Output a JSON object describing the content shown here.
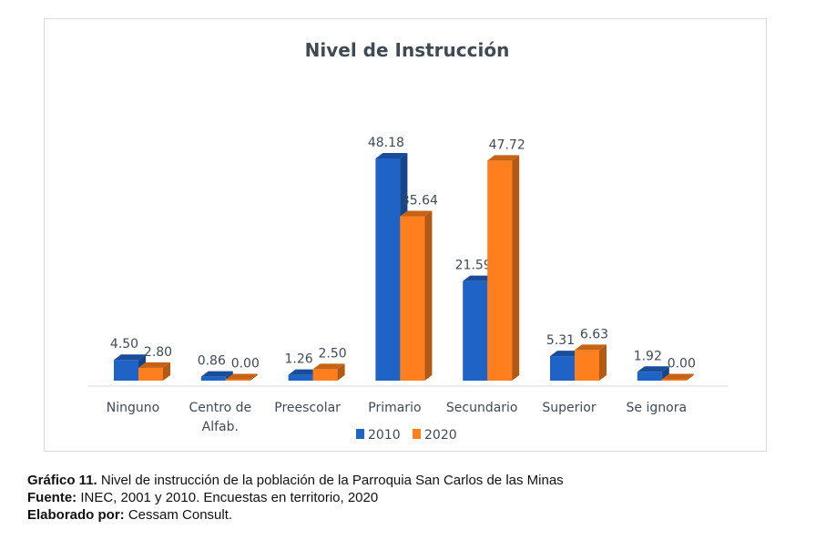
{
  "chart_data": {
    "type": "bar",
    "style": "3d-clustered-column",
    "title": "Nivel de Instrucción",
    "categories": [
      "Ninguno",
      "Centro de Alfab.",
      "Preescolar",
      "Primario",
      "Secundario",
      "Superior",
      "Se ignora"
    ],
    "category_lines": [
      [
        "Ninguno"
      ],
      [
        "Centro de",
        "Alfab."
      ],
      [
        "Preescolar"
      ],
      [
        "Primario"
      ],
      [
        "Secundario"
      ],
      [
        "Superior"
      ],
      [
        "Se ignora"
      ]
    ],
    "series": [
      {
        "name": "2010",
        "values": [
          4.5,
          0.86,
          1.26,
          48.18,
          21.59,
          5.31,
          1.92
        ],
        "labels": [
          "4.50",
          "0.86",
          "1.26",
          "48.18",
          "21.59",
          "5.31",
          "1.92"
        ],
        "color": "#1f63c6"
      },
      {
        "name": "2020",
        "values": [
          2.8,
          0.0,
          2.5,
          35.64,
          47.72,
          6.63,
          0.0
        ],
        "labels": [
          "2.80",
          "0.00",
          "2.50",
          "35.64",
          "47.72",
          "6.63",
          "0.00"
        ],
        "color": "#ff7f1e"
      }
    ],
    "xlabel": "",
    "ylabel": "",
    "ylim": [
      0,
      50
    ],
    "grid": false,
    "legend": "bottom"
  },
  "caption": {
    "line1_bold": "Gráfico 11.",
    "line1": " Nivel de instrucción de la población de la Parroquia San Carlos de las Minas",
    "line2_bold": "Fuente:",
    "line2": " INEC, 2001 y 2010. Encuestas en territorio, 2020",
    "line3_bold": "Elaborado por:",
    "line3": " Cessam Consult."
  }
}
